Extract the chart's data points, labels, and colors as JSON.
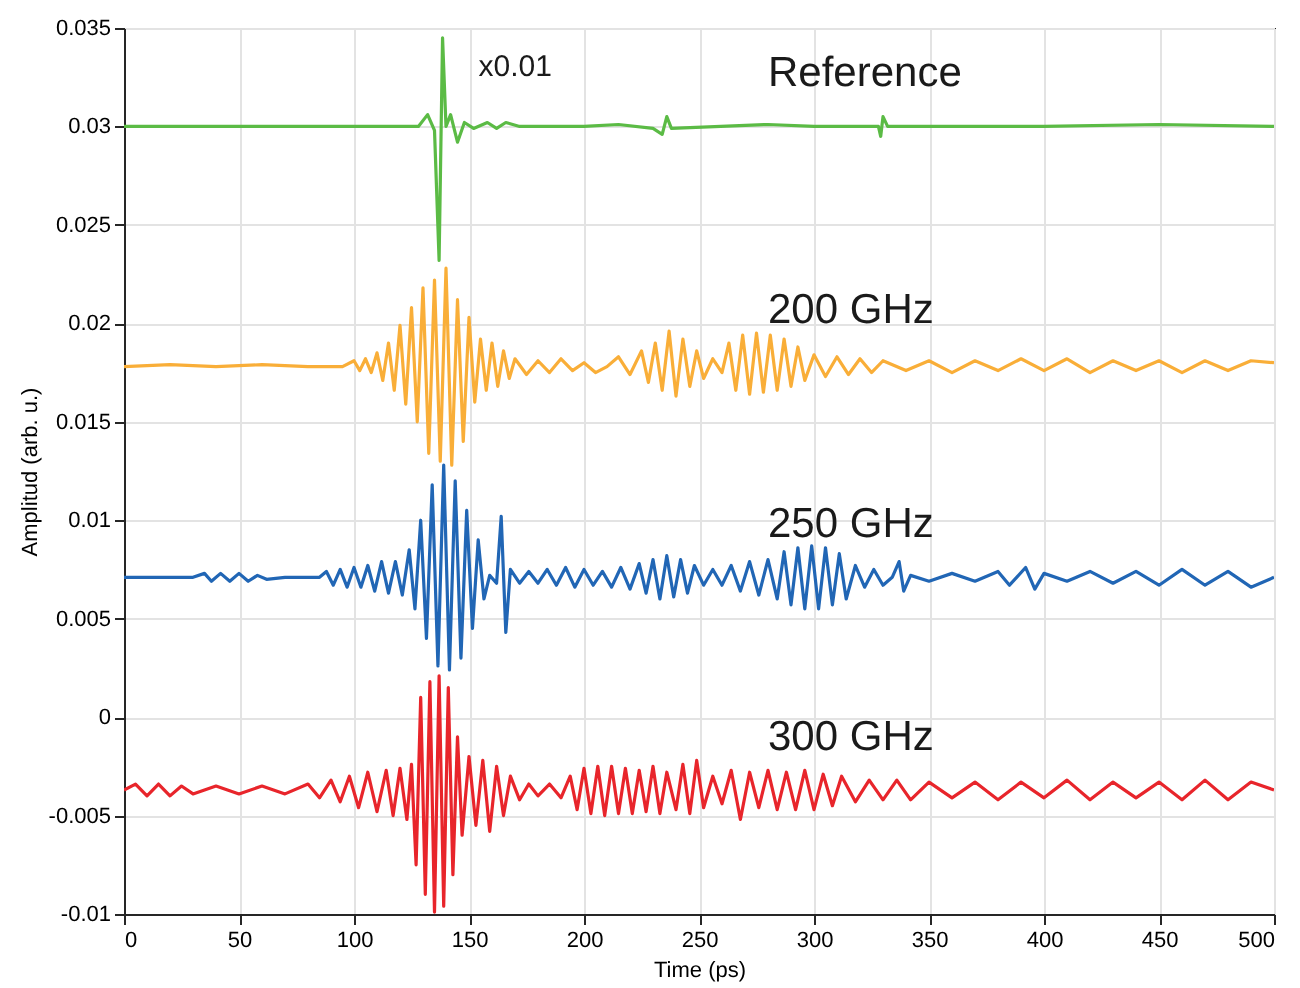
{
  "chart_data": {
    "type": "line",
    "xlabel": "Time (ps)",
    "ylabel": "Amplitud (arb. u.)",
    "xlim": [
      0,
      500
    ],
    "xticks": [
      0,
      50,
      100,
      150,
      200,
      250,
      300,
      350,
      400,
      450,
      500
    ],
    "ylim": [
      -0.01,
      0.035
    ],
    "yticks": [
      -0.01,
      -0.005,
      0,
      0.005,
      0.01,
      0.015,
      0.02,
      0.025,
      0.03,
      0.035
    ],
    "grid": true,
    "legend": false,
    "marker": "none",
    "line_style": "solid",
    "annotations": [
      "x0.01"
    ],
    "series": [
      {
        "name": "Reference",
        "color": "#5bbb45",
        "x": [
          0,
          100,
          128,
          132,
          135,
          137,
          138.5,
          140,
          142,
          145,
          148,
          152,
          158,
          162,
          166,
          172,
          200,
          215,
          230,
          234,
          236,
          238,
          280,
          300,
          328,
          329,
          330,
          332,
          400,
          450,
          500
        ],
        "values": [
          0.03,
          0.03,
          0.03,
          0.0306,
          0.0298,
          0.0232,
          0.0345,
          0.03,
          0.0306,
          0.0292,
          0.0302,
          0.0299,
          0.0302,
          0.0299,
          0.0302,
          0.03,
          0.03,
          0.0301,
          0.0299,
          0.0296,
          0.0305,
          0.0299,
          0.0301,
          0.03,
          0.03,
          0.0295,
          0.0305,
          0.03,
          0.03,
          0.0301,
          0.03
        ]
      },
      {
        "name": "200 GHz",
        "color": "#f9ae38",
        "x": [
          0,
          20,
          40,
          60,
          80,
          95,
          100,
          102.5,
          105,
          107.5,
          110,
          112.5,
          115,
          117.5,
          120,
          122.5,
          125,
          127.5,
          130,
          132.5,
          135,
          137.5,
          140,
          142.5,
          145,
          147.5,
          150,
          152.5,
          155,
          157.5,
          160,
          162.5,
          165,
          167.5,
          170,
          175,
          180,
          185,
          190,
          195,
          200,
          205,
          210,
          215,
          220,
          225,
          228,
          231,
          234,
          237,
          240,
          243,
          246,
          249,
          252,
          256,
          260,
          263,
          266,
          269,
          272,
          275,
          278,
          281,
          284,
          287,
          290,
          293,
          296,
          300,
          305,
          310,
          315,
          320,
          325,
          330,
          340,
          350,
          360,
          370,
          380,
          390,
          400,
          410,
          420,
          430,
          440,
          450,
          460,
          470,
          480,
          490,
          500
        ],
        "values": [
          0.0178,
          0.0179,
          0.0178,
          0.0179,
          0.0178,
          0.0178,
          0.0181,
          0.0176,
          0.0182,
          0.0175,
          0.0185,
          0.0171,
          0.019,
          0.0166,
          0.0199,
          0.0159,
          0.0208,
          0.015,
          0.0218,
          0.0134,
          0.0222,
          0.013,
          0.0228,
          0.0128,
          0.0212,
          0.014,
          0.0203,
          0.016,
          0.0192,
          0.0166,
          0.019,
          0.0168,
          0.0186,
          0.0172,
          0.0182,
          0.0174,
          0.0181,
          0.0175,
          0.0182,
          0.0176,
          0.018,
          0.0175,
          0.0178,
          0.0183,
          0.0174,
          0.0186,
          0.017,
          0.019,
          0.0166,
          0.0196,
          0.0163,
          0.0192,
          0.0168,
          0.0186,
          0.0172,
          0.0182,
          0.0175,
          0.019,
          0.0166,
          0.0194,
          0.0164,
          0.0195,
          0.0165,
          0.0194,
          0.0166,
          0.0192,
          0.0168,
          0.0188,
          0.0171,
          0.0184,
          0.0173,
          0.0183,
          0.0174,
          0.0182,
          0.0175,
          0.0181,
          0.0176,
          0.0181,
          0.0175,
          0.0181,
          0.0176,
          0.0182,
          0.0176,
          0.0182,
          0.0175,
          0.0181,
          0.0176,
          0.0181,
          0.0175,
          0.0181,
          0.0176,
          0.0181,
          0.018
        ]
      },
      {
        "name": "250 GHz",
        "color": "#2166b5",
        "x": [
          0,
          30,
          35,
          38,
          42,
          46,
          50,
          54,
          58,
          62,
          70,
          85,
          88,
          91,
          94,
          97,
          100,
          103,
          106,
          109,
          112,
          115,
          118,
          121,
          124,
          126.5,
          129,
          131.5,
          134,
          136.5,
          139,
          141.5,
          144,
          146.5,
          149,
          151.5,
          154,
          156.5,
          159,
          162,
          164,
          166,
          168,
          172,
          176,
          180,
          184,
          188,
          192,
          196,
          200,
          204,
          208,
          212,
          216,
          220,
          224,
          227,
          230,
          233,
          236,
          239,
          242,
          245,
          248,
          252,
          256,
          260,
          264,
          268,
          272,
          276,
          280,
          284,
          287,
          290,
          293,
          296,
          299,
          302,
          305,
          308,
          311,
          314,
          318,
          322,
          326,
          330,
          334,
          337,
          339,
          342,
          350,
          360,
          370,
          380,
          385,
          392,
          396,
          400,
          410,
          420,
          430,
          440,
          450,
          460,
          470,
          480,
          490,
          500
        ],
        "values": [
          0.0071,
          0.0071,
          0.0073,
          0.0069,
          0.0073,
          0.0069,
          0.0073,
          0.0069,
          0.0072,
          0.007,
          0.0071,
          0.0071,
          0.0074,
          0.0067,
          0.0075,
          0.0066,
          0.0076,
          0.0066,
          0.0077,
          0.0064,
          0.0079,
          0.0063,
          0.0079,
          0.0062,
          0.0085,
          0.0055,
          0.01,
          0.004,
          0.0118,
          0.0026,
          0.0128,
          0.0024,
          0.012,
          0.003,
          0.0105,
          0.0045,
          0.009,
          0.006,
          0.0072,
          0.0068,
          0.0102,
          0.0043,
          0.0075,
          0.0068,
          0.0074,
          0.0068,
          0.0075,
          0.0067,
          0.0076,
          0.0066,
          0.0075,
          0.0067,
          0.0074,
          0.0066,
          0.0076,
          0.0065,
          0.0078,
          0.0063,
          0.008,
          0.006,
          0.0082,
          0.0061,
          0.008,
          0.0063,
          0.0077,
          0.0067,
          0.0075,
          0.0067,
          0.0077,
          0.0064,
          0.0079,
          0.0062,
          0.008,
          0.006,
          0.0084,
          0.0057,
          0.0086,
          0.0055,
          0.0087,
          0.0055,
          0.0086,
          0.0057,
          0.0083,
          0.006,
          0.0077,
          0.0066,
          0.0075,
          0.0067,
          0.0071,
          0.0079,
          0.0064,
          0.0072,
          0.0069,
          0.0073,
          0.0069,
          0.0074,
          0.0067,
          0.0076,
          0.0065,
          0.0073,
          0.0069,
          0.0074,
          0.0068,
          0.0074,
          0.0067,
          0.0075,
          0.0067,
          0.0074,
          0.0066,
          0.0071
        ]
      },
      {
        "name": "300 GHz",
        "color": "#e8252b",
        "x": [
          0,
          5,
          10,
          15,
          20,
          25,
          30,
          40,
          50,
          60,
          70,
          80,
          85,
          90,
          94,
          98,
          102,
          106,
          110,
          114,
          117,
          120,
          123,
          125,
          127,
          129,
          131,
          133,
          135,
          137,
          139,
          141,
          143,
          145,
          147,
          150,
          153,
          156,
          159,
          162,
          165,
          168,
          172,
          176,
          180,
          185,
          190,
          194,
          197,
          200,
          203,
          206,
          209,
          212,
          215,
          218,
          221,
          224,
          227,
          230,
          233,
          236,
          240,
          243,
          246,
          249,
          252,
          256,
          260,
          264,
          268,
          272,
          276,
          280,
          284,
          288,
          292,
          296,
          300,
          304,
          308,
          312,
          318,
          324,
          330,
          336,
          342,
          350,
          360,
          370,
          380,
          390,
          400,
          410,
          420,
          430,
          440,
          450,
          460,
          470,
          480,
          490,
          500
        ],
        "values": [
          -0.0037,
          -0.0034,
          -0.004,
          -0.0034,
          -0.004,
          -0.0035,
          -0.0039,
          -0.0035,
          -0.0039,
          -0.0035,
          -0.0039,
          -0.0034,
          -0.0041,
          -0.0032,
          -0.0043,
          -0.003,
          -0.0046,
          -0.0028,
          -0.0048,
          -0.0027,
          -0.005,
          -0.0026,
          -0.0052,
          -0.0024,
          -0.0075,
          0.001,
          -0.009,
          0.0018,
          -0.0099,
          0.0021,
          -0.0096,
          0.0015,
          -0.008,
          -0.001,
          -0.006,
          -0.002,
          -0.0055,
          -0.0022,
          -0.0058,
          -0.0025,
          -0.005,
          -0.003,
          -0.0042,
          -0.0034,
          -0.004,
          -0.0034,
          -0.0041,
          -0.003,
          -0.0047,
          -0.0026,
          -0.0049,
          -0.0025,
          -0.005,
          -0.0025,
          -0.0049,
          -0.0026,
          -0.0049,
          -0.0027,
          -0.0048,
          -0.0025,
          -0.0049,
          -0.0028,
          -0.0047,
          -0.0024,
          -0.0049,
          -0.0022,
          -0.0046,
          -0.003,
          -0.0044,
          -0.0027,
          -0.0052,
          -0.0028,
          -0.0046,
          -0.0027,
          -0.0047,
          -0.0028,
          -0.0047,
          -0.0027,
          -0.0047,
          -0.0029,
          -0.0045,
          -0.003,
          -0.0043,
          -0.0032,
          -0.0042,
          -0.0032,
          -0.0042,
          -0.0033,
          -0.0041,
          -0.0033,
          -0.0042,
          -0.0033,
          -0.0041,
          -0.0032,
          -0.0042,
          -0.0033,
          -0.0041,
          -0.0033,
          -0.0042,
          -0.0032,
          -0.0042,
          -0.0033,
          -0.0037
        ]
      }
    ]
  }
}
